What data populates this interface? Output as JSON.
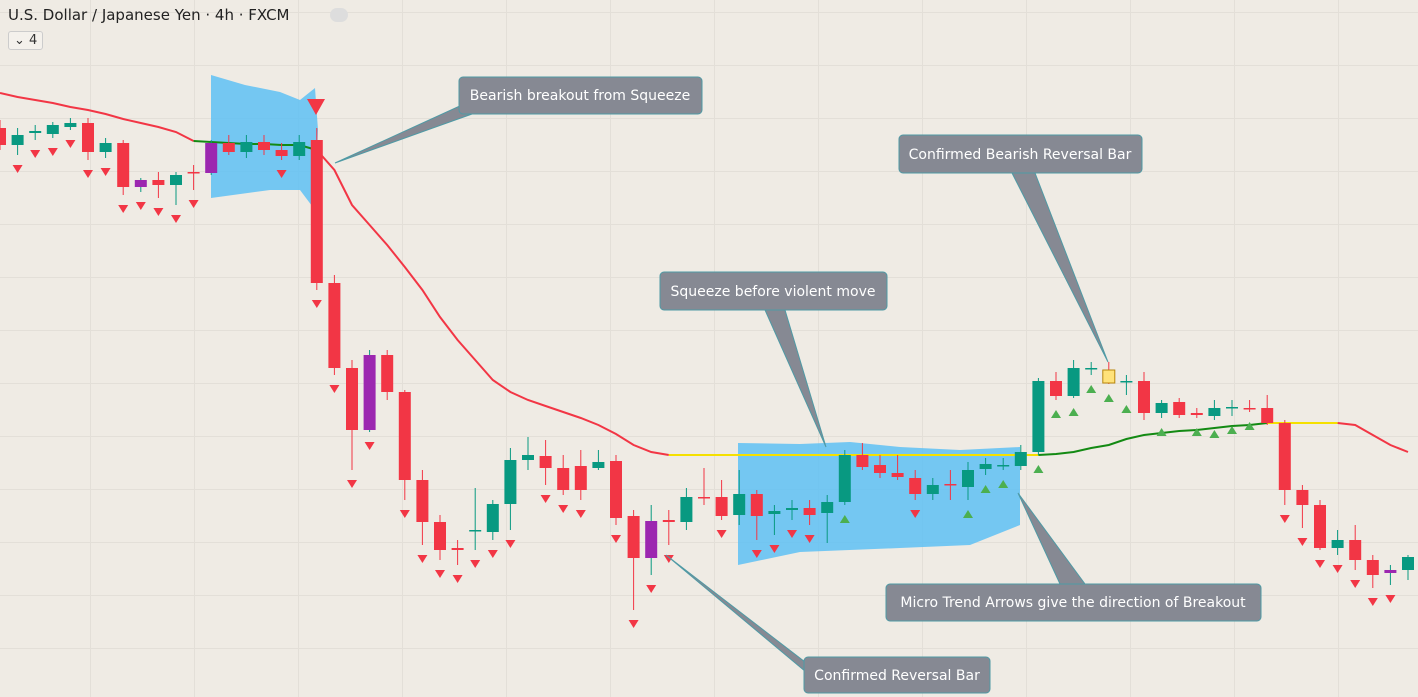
{
  "header": {
    "title": "U.S. Dollar / Japanese Yen · 4h · FXCM",
    "indicator_count": "4"
  },
  "chart_data": {
    "type": "candlestick",
    "categories": [
      null,
      null,
      null,
      null,
      null,
      null,
      null,
      null,
      null,
      null,
      null,
      null,
      null,
      null,
      null,
      null,
      null,
      null,
      null,
      null,
      null,
      null,
      null,
      null,
      null,
      null,
      null,
      null,
      null,
      null,
      null,
      null,
      null,
      null,
      null,
      null,
      null,
      null,
      null,
      null,
      null,
      null,
      null,
      null,
      null,
      null,
      null,
      null,
      null,
      null,
      null,
      null,
      null,
      null,
      null,
      null,
      null,
      null,
      null,
      null,
      null,
      null,
      null,
      null,
      null,
      null,
      null,
      null,
      null,
      null,
      null,
      null,
      null,
      null,
      null,
      null,
      null,
      null,
      null,
      null,
      null
    ],
    "open": [
      569,
      552,
      564,
      563,
      570,
      574,
      545,
      554,
      510,
      517,
      512,
      525,
      524,
      554,
      545,
      555,
      547,
      541,
      557,
      414,
      329,
      267,
      342,
      305,
      217,
      175,
      149,
      167,
      165,
      193,
      237,
      241,
      229,
      231,
      229,
      236,
      181,
      139,
      177,
      175,
      200,
      200,
      182,
      203,
      183,
      187,
      189,
      184,
      195,
      242,
      232,
      224,
      219,
      203,
      213,
      210,
      228,
      231,
      231,
      245,
      316,
      301,
      328,
      327,
      315,
      316,
      284,
      295,
      284,
      281,
      289,
      289,
      289,
      274,
      207,
      192,
      149,
      157,
      137,
      124,
      127
    ],
    "high": [
      577,
      569,
      572,
      575,
      579,
      579,
      559,
      557,
      519,
      525,
      525,
      532,
      557,
      562,
      562,
      562,
      554,
      562,
      569,
      422,
      337,
      347,
      347,
      307,
      227,
      182,
      157,
      209,
      197,
      249,
      260,
      257,
      242,
      247,
      247,
      242,
      187,
      192,
      187,
      209,
      229,
      217,
      227,
      207,
      192,
      197,
      197,
      202,
      247,
      254,
      242,
      242,
      227,
      219,
      227,
      235,
      239,
      239,
      252,
      319,
      325,
      337,
      335,
      335,
      322,
      325,
      297,
      299,
      289,
      297,
      297,
      297,
      302,
      277,
      212,
      197,
      167,
      172,
      142,
      132,
      142
    ],
    "low": [
      547,
      542,
      557,
      559,
      567,
      537,
      539,
      502,
      505,
      499,
      492,
      507,
      522,
      542,
      539,
      542,
      537,
      537,
      407,
      322,
      227,
      265,
      297,
      197,
      152,
      137,
      132,
      147,
      157,
      167,
      227,
      212,
      202,
      197,
      227,
      172,
      87,
      122,
      152,
      167,
      192,
      177,
      172,
      157,
      162,
      177,
      172,
      154,
      192,
      227,
      219,
      217,
      197,
      197,
      197,
      197,
      222,
      227,
      227,
      242,
      297,
      299,
      322,
      313,
      302,
      277,
      279,
      279,
      279,
      277,
      281,
      285,
      272,
      192,
      169,
      147,
      142,
      127,
      109,
      112,
      117
    ],
    "close": [
      552,
      562,
      566,
      572,
      574,
      545,
      554,
      510,
      517,
      512,
      522,
      524,
      554,
      545,
      555,
      547,
      541,
      555,
      414,
      329,
      267,
      342,
      305,
      217,
      175,
      147,
      147,
      167,
      193,
      237,
      242,
      229,
      207,
      207,
      235,
      179,
      139,
      176,
      175,
      200,
      199,
      181,
      203,
      181,
      186,
      189,
      182,
      195,
      242,
      230,
      224,
      220,
      203,
      212,
      212,
      227,
      233,
      232,
      245,
      316,
      301,
      329,
      329,
      314,
      316,
      284,
      294,
      282,
      282,
      289,
      290,
      288,
      274,
      207,
      192,
      149,
      157,
      137,
      122,
      127,
      140
    ],
    "colors": [
      "#f23645",
      "#089981",
      "#089981",
      "#089981",
      "#089981",
      "#f23645",
      "#089981",
      "#f23645",
      "#9c27b0",
      "#f23645",
      "#089981",
      "#f23645",
      "#9c27b0",
      "#f23645",
      "#089981",
      "#f23645",
      "#f23645",
      "#089981",
      "#f23645",
      "#f23645",
      "#f23645",
      "#9c27b0",
      "#f23645",
      "#f23645",
      "#f23645",
      "#f23645",
      "#f23645",
      "#089981",
      "#089981",
      "#089981",
      "#089981",
      "#f23645",
      "#f23645",
      "#f23645",
      "#089981",
      "#f23645",
      "#f23645",
      "#9c27b0",
      "#f23645",
      "#089981",
      "#f23645",
      "#f23645",
      "#089981",
      "#f23645",
      "#089981",
      "#089981",
      "#f23645",
      "#089981",
      "#089981",
      "#f23645",
      "#f23645",
      "#f23645",
      "#f23645",
      "#089981",
      "#f23645",
      "#089981",
      "#089981",
      "#089981",
      "#089981",
      "#089981",
      "#f23645",
      "#089981",
      "#089981",
      "#ffe27a",
      "#089981",
      "#f23645",
      "#089981",
      "#f23645",
      "#f23645",
      "#089981",
      "#089981",
      "#f23645",
      "#f23645",
      "#f23645",
      "#f23645",
      "#f23645",
      "#089981",
      "#f23645",
      "#f23645",
      "#9c27b0",
      "#089981"
    ],
    "arrows": [
      null,
      "down",
      "down",
      "down",
      "down",
      "down",
      "down",
      "down",
      "down",
      "down",
      "down",
      "down",
      null,
      null,
      null,
      null,
      "down",
      null,
      "down",
      "down",
      "down",
      "down",
      null,
      "down",
      "down",
      "down",
      "down",
      "down",
      "down",
      "down",
      null,
      "down",
      "down",
      "down",
      null,
      "down",
      "down",
      "down",
      "down",
      null,
      null,
      "down",
      null,
      "down",
      "down",
      "down",
      "down",
      null,
      "up",
      null,
      null,
      null,
      "down",
      null,
      null,
      "up",
      "up",
      "up",
      null,
      "up",
      "up",
      "up",
      "up",
      "up",
      "up",
      null,
      "up",
      null,
      "up",
      "up",
      "up",
      "up",
      null,
      "down",
      "down",
      "down",
      "down",
      "down",
      "down",
      "down",
      null
    ],
    "series": [
      {
        "color": "#f23645",
        "values": [
          604,
          600,
          597,
          594,
          590,
          587,
          583,
          578,
          574,
          570,
          565,
          556,
          null,
          null,
          null,
          null,
          null,
          null,
          547,
          527,
          492,
          472,
          452,
          430,
          407,
          380,
          357,
          337,
          317,
          305,
          297,
          291,
          285,
          279,
          272,
          263,
          252,
          245,
          242,
          null,
          null,
          null,
          null,
          null,
          null,
          null,
          null,
          null,
          null,
          null,
          null,
          null,
          null,
          null,
          null,
          null,
          null,
          null,
          null,
          null,
          null,
          null,
          null,
          null,
          null,
          null,
          null,
          null,
          null,
          null,
          null,
          null,
          null,
          null,
          null,
          null,
          274,
          272,
          262,
          252,
          245
        ]
      },
      {
        "color": "#138a13",
        "values": [
          null,
          null,
          null,
          null,
          null,
          null,
          null,
          null,
          null,
          null,
          null,
          556,
          555,
          554,
          553,
          553,
          552,
          552,
          547,
          null,
          null,
          null,
          null,
          null,
          null,
          null,
          null,
          null,
          null,
          null,
          null,
          null,
          null,
          null,
          null,
          null,
          null,
          null,
          null,
          null,
          null,
          null,
          null,
          null,
          null,
          null,
          null,
          null,
          null,
          null,
          null,
          null,
          null,
          null,
          null,
          null,
          null,
          null,
          null,
          242,
          243,
          245,
          249,
          252,
          258,
          262,
          264,
          266,
          267,
          269,
          271,
          272,
          274,
          null,
          null,
          null,
          null,
          null,
          null,
          null,
          null
        ]
      },
      {
        "color": "#f5e000",
        "values": [
          null,
          null,
          null,
          null,
          null,
          null,
          null,
          null,
          null,
          null,
          null,
          null,
          null,
          null,
          null,
          null,
          null,
          null,
          null,
          null,
          null,
          null,
          null,
          null,
          null,
          null,
          null,
          null,
          null,
          null,
          null,
          null,
          null,
          null,
          null,
          null,
          null,
          null,
          242,
          242,
          242,
          242,
          242,
          242,
          242,
          242,
          242,
          242,
          242,
          242,
          242,
          242,
          242,
          242,
          242,
          242,
          242,
          242,
          242,
          242,
          null,
          null,
          null,
          null,
          null,
          null,
          null,
          null,
          null,
          null,
          null,
          null,
          274,
          274,
          274,
          274,
          274,
          null,
          null,
          null,
          null
        ]
      }
    ],
    "ylim": [
      0,
      697
    ],
    "annotations": [
      "Bearish breakout from Squeeze",
      "Confirmed Bearish Reversal Bar",
      "Squeeze before violent move",
      "Micro Trend Arrows give the direction of Breakout",
      "Confirmed Reversal Bar"
    ]
  }
}
